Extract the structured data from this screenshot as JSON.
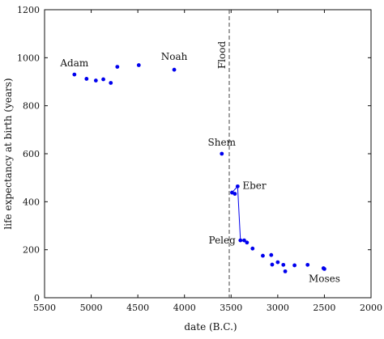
{
  "chart_data": {
    "type": "scatter",
    "title": "",
    "xlabel": "date (B.C.)",
    "ylabel": "life expectancy at birth (years)",
    "xlim": [
      5500,
      2000
    ],
    "ylim": [
      0,
      1200
    ],
    "x_reversed": true,
    "xticks": [
      5500,
      5000,
      4500,
      4000,
      3500,
      3000,
      2500,
      2000
    ],
    "yticks": [
      0,
      200,
      400,
      600,
      800,
      1000,
      1200
    ],
    "grid": false,
    "legend": "none",
    "point_color": "#0000ee",
    "line_color": "#0000ee",
    "reference_color": "#444444",
    "points": [
      {
        "x": 5180,
        "y": 930
      },
      {
        "x": 5050,
        "y": 912
      },
      {
        "x": 4950,
        "y": 905
      },
      {
        "x": 4870,
        "y": 910
      },
      {
        "x": 4790,
        "y": 895
      },
      {
        "x": 4720,
        "y": 962
      },
      {
        "x": 4490,
        "y": 969
      },
      {
        "x": 4110,
        "y": 950
      },
      {
        "x": 3600,
        "y": 600
      },
      {
        "x": 3490,
        "y": 438
      },
      {
        "x": 3460,
        "y": 433
      },
      {
        "x": 3430,
        "y": 464
      },
      {
        "x": 3400,
        "y": 239
      },
      {
        "x": 3360,
        "y": 239
      },
      {
        "x": 3330,
        "y": 230
      },
      {
        "x": 3270,
        "y": 205
      },
      {
        "x": 3160,
        "y": 175
      },
      {
        "x": 3070,
        "y": 178
      },
      {
        "x": 3060,
        "y": 138
      },
      {
        "x": 3000,
        "y": 148
      },
      {
        "x": 2940,
        "y": 137
      },
      {
        "x": 2920,
        "y": 110
      },
      {
        "x": 2820,
        "y": 135
      },
      {
        "x": 2680,
        "y": 137
      },
      {
        "x": 2510,
        "y": 123
      },
      {
        "x": 2500,
        "y": 120
      }
    ],
    "connecting_line": [
      {
        "x": 3490,
        "y": 438
      },
      {
        "x": 3430,
        "y": 464
      },
      {
        "x": 3400,
        "y": 239
      }
    ],
    "reference_lines": [
      {
        "axis": "x",
        "value": 3520,
        "style": "dashed",
        "label": "Flood"
      }
    ],
    "annotations": [
      {
        "text": "Adam",
        "x": 5180,
        "y": 930
      },
      {
        "text": "Noah",
        "x": 4110,
        "y": 950
      },
      {
        "text": "Shem",
        "x": 3600,
        "y": 600
      },
      {
        "text": "Eber",
        "x": 3430,
        "y": 464
      },
      {
        "text": "Peleg",
        "x": 3400,
        "y": 239
      },
      {
        "text": "Moses",
        "x": 2500,
        "y": 120
      }
    ]
  }
}
